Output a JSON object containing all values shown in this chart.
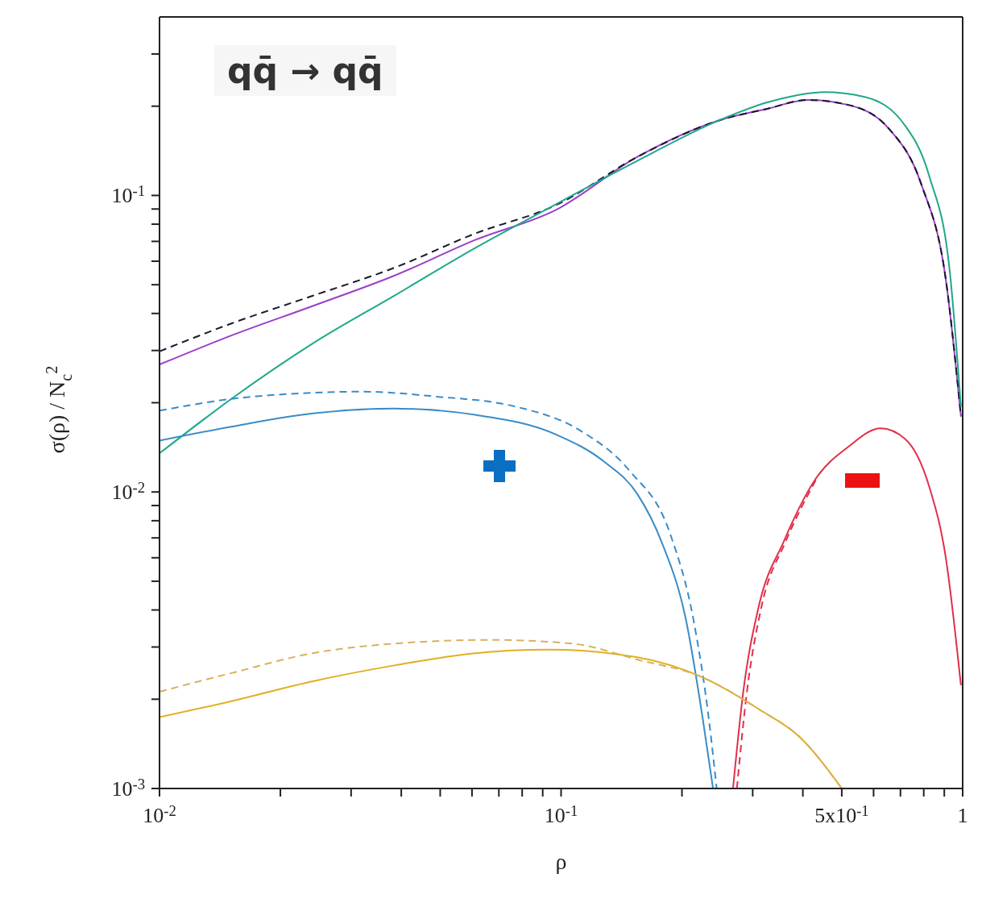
{
  "chart_data": {
    "type": "line",
    "title": "qq̄ → qq̄",
    "xlabel": "ρ",
    "ylabel": "σ(ρ) / N$_{c}$$^{2}$",
    "log": "xy",
    "xlim": [
      0.01,
      1
    ],
    "ylim": [
      0.001,
      0.4
    ],
    "xticks": [
      {
        "value": 0.01,
        "label": "10$^{-2}$"
      },
      {
        "value": 0.02,
        "label": null
      },
      {
        "value": 0.03,
        "label": null
      },
      {
        "value": 0.04,
        "label": null
      },
      {
        "value": 0.05,
        "label": null
      },
      {
        "value": 0.06,
        "label": null
      },
      {
        "value": 0.07,
        "label": null
      },
      {
        "value": 0.08,
        "label": null
      },
      {
        "value": 0.09,
        "label": null
      },
      {
        "value": 0.1,
        "label": "10$^{-1}$"
      },
      {
        "value": 0.2,
        "label": null
      },
      {
        "value": 0.3,
        "label": null
      },
      {
        "value": 0.4,
        "label": null
      },
      {
        "value": 0.5,
        "label": "5x10$^{-1}$"
      },
      {
        "value": 0.6,
        "label": null
      },
      {
        "value": 0.7,
        "label": null
      },
      {
        "value": 0.8,
        "label": null
      },
      {
        "value": 0.9,
        "label": null
      },
      {
        "value": 1,
        "label": "1"
      }
    ],
    "yticks": [
      {
        "value": 0.001,
        "label": "10$^{-3}$"
      },
      {
        "value": 0.002,
        "label": null
      },
      {
        "value": 0.003,
        "label": null
      },
      {
        "value": 0.004,
        "label": null
      },
      {
        "value": 0.005,
        "label": null
      },
      {
        "value": 0.006,
        "label": null
      },
      {
        "value": 0.007,
        "label": null
      },
      {
        "value": 0.008,
        "label": null
      },
      {
        "value": 0.009,
        "label": null
      },
      {
        "value": 0.01,
        "label": "10$^{-2}$"
      },
      {
        "value": 0.02,
        "label": null
      },
      {
        "value": 0.03,
        "label": null
      },
      {
        "value": 0.04,
        "label": null
      },
      {
        "value": 0.05,
        "label": null
      },
      {
        "value": 0.06,
        "label": null
      },
      {
        "value": 0.07,
        "label": null
      },
      {
        "value": 0.08,
        "label": null
      },
      {
        "value": 0.09,
        "label": null
      },
      {
        "value": 0.1,
        "label": "10$^{-1}$"
      },
      {
        "value": 0.2,
        "label": null
      },
      {
        "value": 0.3,
        "label": null
      }
    ],
    "series": [
      {
        "color": "#9b3fc9",
        "line_style": "solid",
        "x": [
          0.01,
          0.0151,
          0.0241,
          0.0384,
          0.0611,
          0.0973,
          0.155,
          0.247,
          0.326,
          0.411,
          0.519,
          0.655,
          0.789,
          0.908,
          0.99
        ],
        "values": [
          0.0269,
          0.0337,
          0.0424,
          0.0536,
          0.0708,
          0.0895,
          0.135,
          0.179,
          0.196,
          0.21,
          0.202,
          0.168,
          0.109,
          0.052,
          0.018
        ]
      },
      {
        "color": "#1a1a2e",
        "line_style": "dashed",
        "x": [
          0.01,
          0.0151,
          0.0241,
          0.0384,
          0.0611,
          0.0973,
          0.155,
          0.247,
          0.326,
          0.411,
          0.519,
          0.655,
          0.789,
          0.908,
          0.99
        ],
        "values": [
          0.0298,
          0.037,
          0.0459,
          0.057,
          0.0744,
          0.0929,
          0.135,
          0.179,
          0.196,
          0.21,
          0.202,
          0.168,
          0.109,
          0.052,
          0.018
        ]
      },
      {
        "color": "#1fa88a",
        "line_style": "solid",
        "x": [
          0.01,
          0.0151,
          0.0241,
          0.0384,
          0.0611,
          0.0973,
          0.155,
          0.247,
          0.326,
          0.452,
          0.57,
          0.719,
          0.826,
          0.929,
          0.99
        ],
        "values": [
          0.0135,
          0.0206,
          0.0317,
          0.0459,
          0.0665,
          0.0935,
          0.131,
          0.179,
          0.206,
          0.223,
          0.215,
          0.172,
          0.116,
          0.0553,
          0.0194
        ]
      },
      {
        "color": "#3a8cc8",
        "line_style": "solid",
        "x": [
          0.01,
          0.0151,
          0.0241,
          0.0384,
          0.0611,
          0.0973,
          0.1285,
          0.155,
          0.178,
          0.205,
          0.225,
          0.239
        ],
        "values": [
          0.0149,
          0.0166,
          0.0184,
          0.0191,
          0.0182,
          0.0156,
          0.0126,
          0.00982,
          0.00678,
          0.00366,
          0.00174,
          0.001
        ]
      },
      {
        "color": "#3a8cc8",
        "line_style": "dashed",
        "x": [
          0.01,
          0.0151,
          0.0241,
          0.0318,
          0.0484,
          0.0771,
          0.1117,
          0.148,
          0.187,
          0.214,
          0.233,
          0.244
        ],
        "values": [
          0.0188,
          0.0206,
          0.0216,
          0.0218,
          0.021,
          0.0194,
          0.0161,
          0.0118,
          0.00721,
          0.00366,
          0.00174,
          0.001
        ]
      },
      {
        "color": "#e0304a",
        "line_style": "solid",
        "x": [
          0.268,
          0.284,
          0.311,
          0.358,
          0.431,
          0.519,
          0.625,
          0.719,
          0.826,
          0.908,
          0.99
        ],
        "values": [
          0.001,
          0.0021,
          0.00414,
          0.00678,
          0.0111,
          0.0142,
          0.0164,
          0.0151,
          0.0104,
          0.00599,
          0.00223
        ]
      },
      {
        "color": "#e0304a",
        "line_style": "dashed",
        "x": [
          0.274,
          0.29,
          0.316,
          0.362,
          0.433
        ],
        "values": [
          0.001,
          0.0021,
          0.00414,
          0.00678,
          0.0111
        ]
      },
      {
        "color": "#e0b020",
        "line_style": "solid",
        "x": [
          0.01,
          0.0151,
          0.0241,
          0.0384,
          0.0611,
          0.0929,
          0.155,
          0.225,
          0.311,
          0.393,
          0.5
        ],
        "values": [
          0.00174,
          0.00197,
          0.0023,
          0.0026,
          0.00286,
          0.00294,
          0.00277,
          0.00237,
          0.00185,
          0.00149,
          0.001
        ]
      },
      {
        "color": "#d8b060",
        "line_style": "dashed",
        "x": [
          0.01,
          0.0151,
          0.0241,
          0.0384,
          0.067,
          0.1067,
          0.155,
          0.225,
          0.311,
          0.393,
          0.5
        ],
        "values": [
          0.00212,
          0.00245,
          0.00286,
          0.00308,
          0.00317,
          0.00308,
          0.00272,
          0.00237,
          0.00185,
          0.00149,
          0.001
        ]
      }
    ]
  }
}
